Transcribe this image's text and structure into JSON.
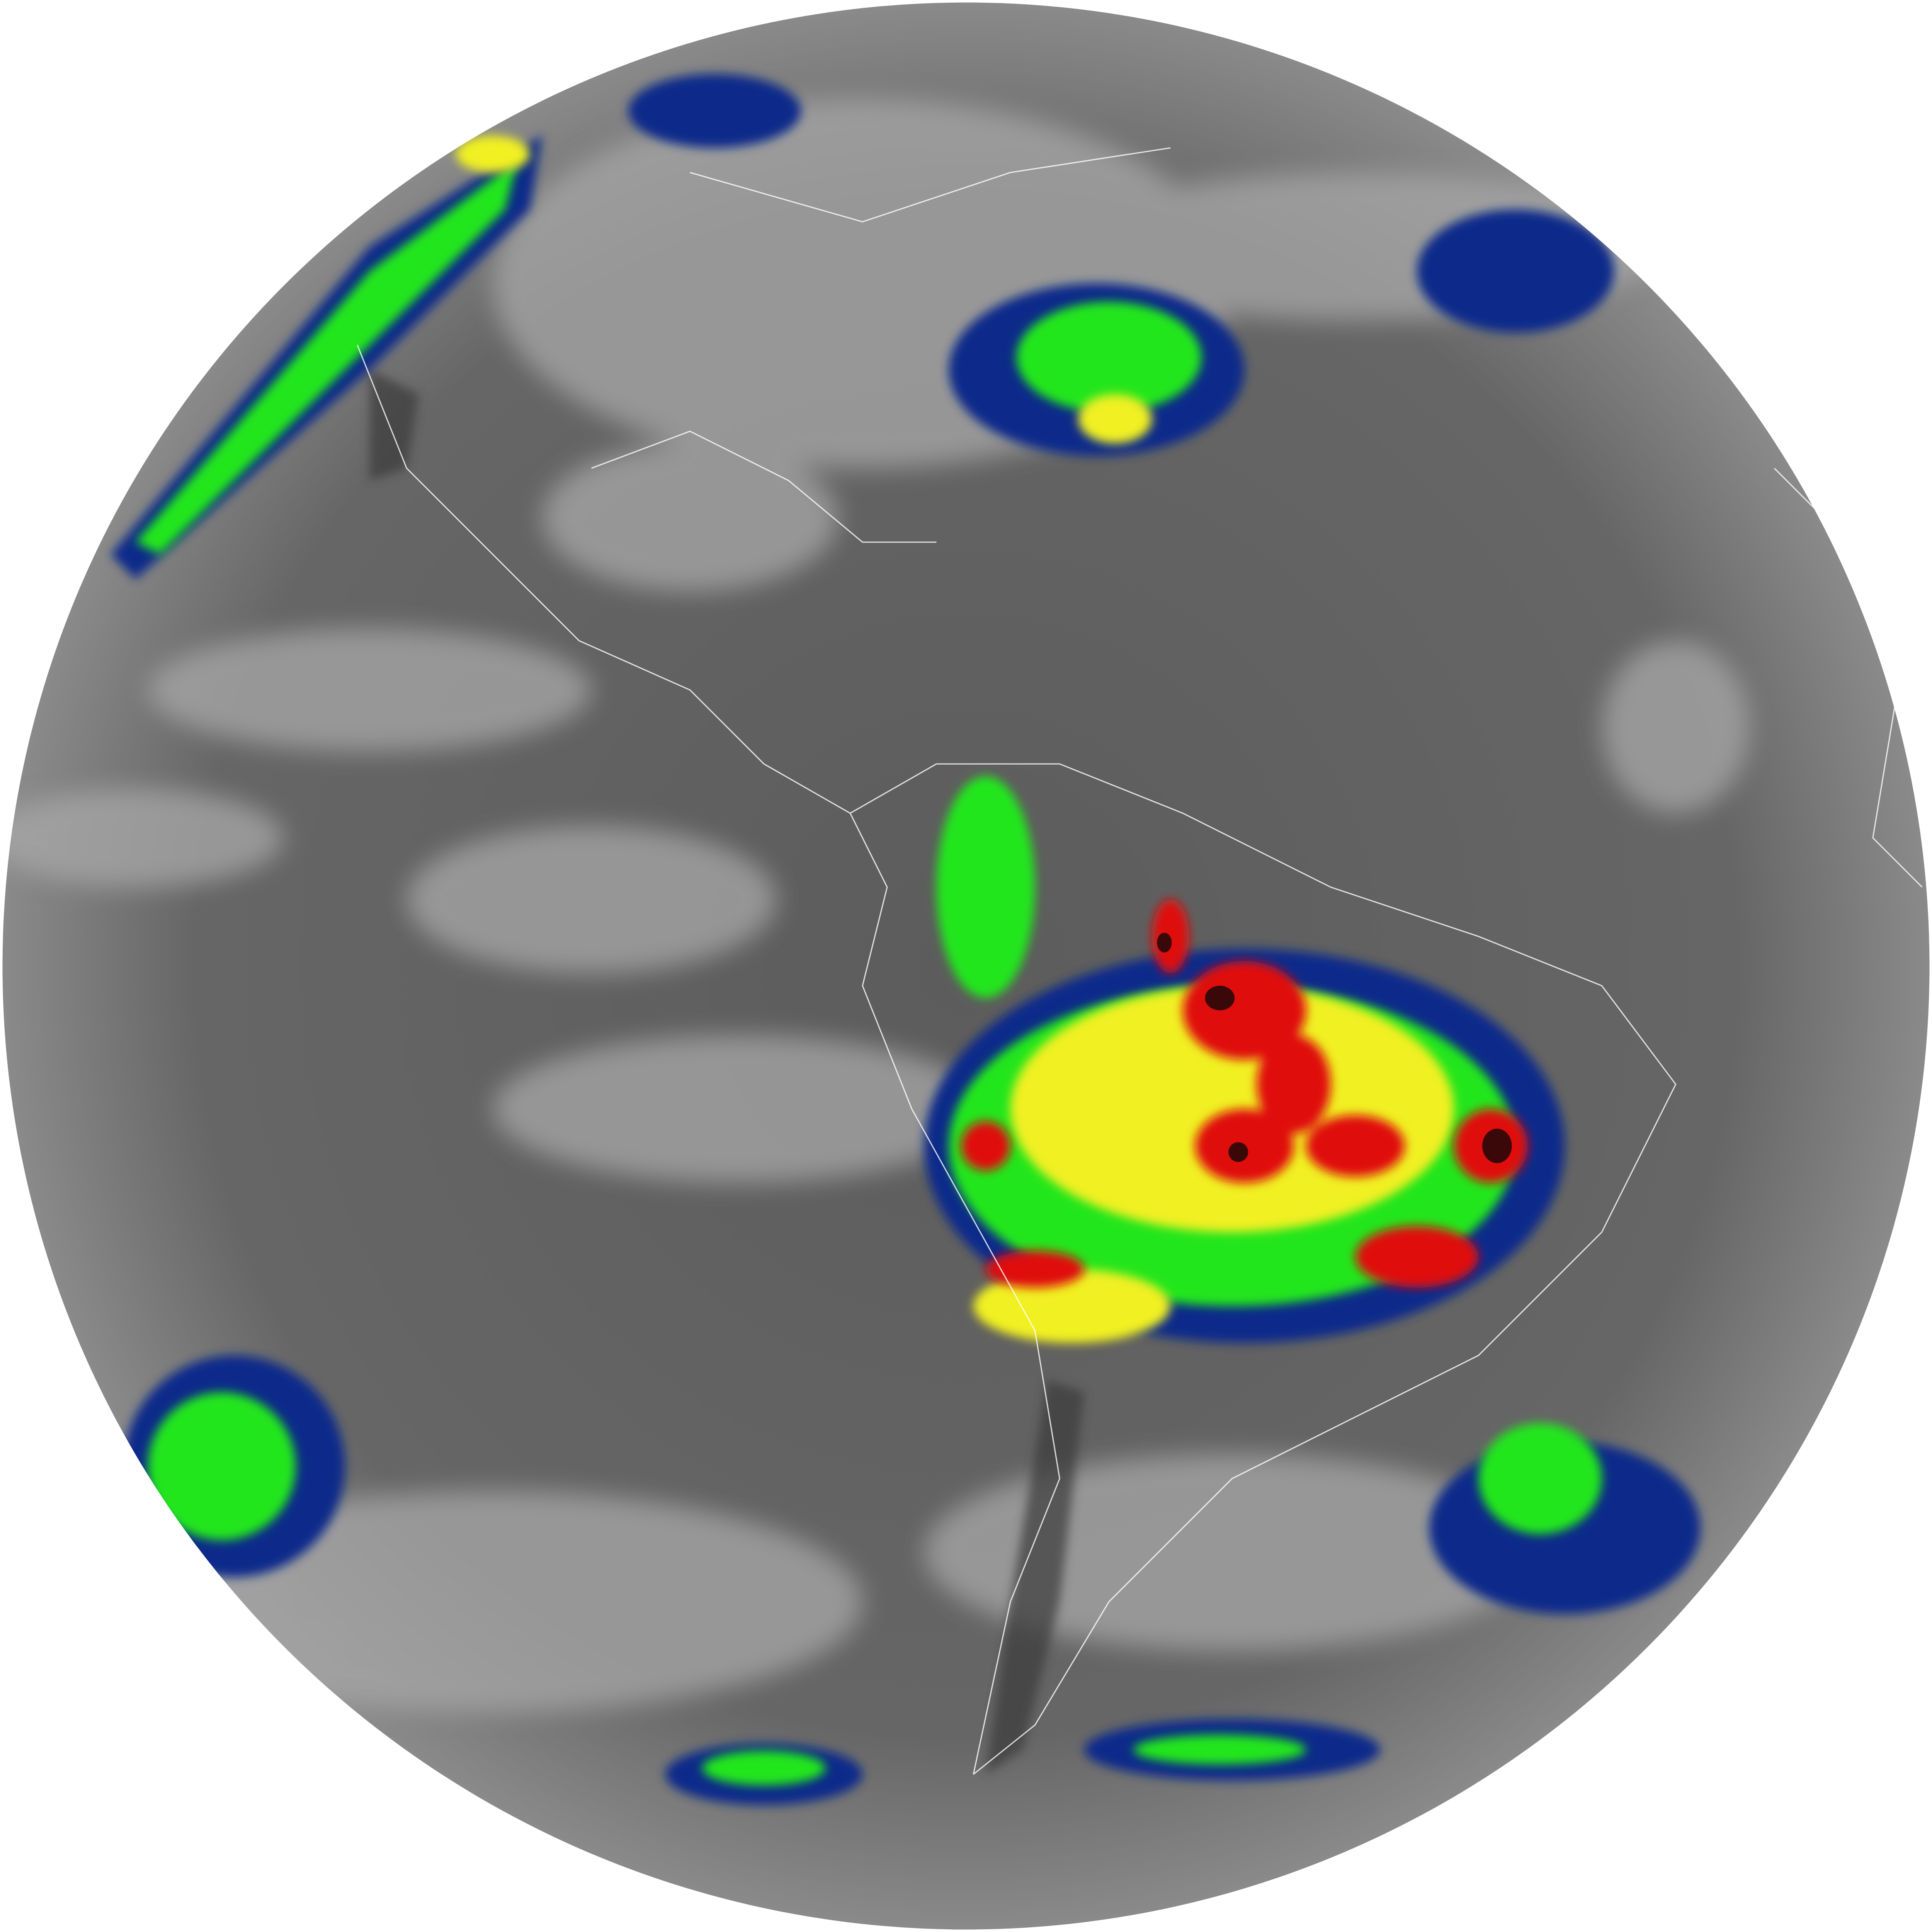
{
  "background_color": "#ffffff",
  "palette": {
    "ocean_dark": "#4a4a4a",
    "ocean_mid": "#6a6a6a",
    "cloud_light": "#b8b8b8",
    "cold_cyan": "#29c8f0",
    "cold_blue": "#0a2a8a",
    "cold_green": "#22e61e",
    "cold_yellow": "#f0f020",
    "cold_red": "#e01010",
    "cold_darkred": "#3a0808",
    "coastline": "#ffffff"
  }
}
